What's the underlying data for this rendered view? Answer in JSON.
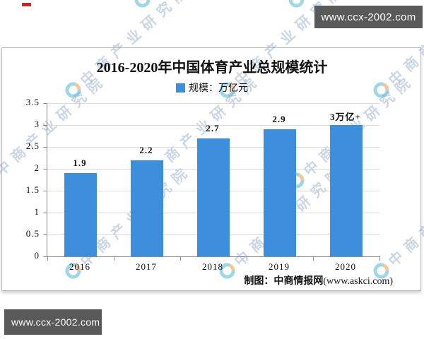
{
  "decorations": {
    "red_mark_color": "#cc2222"
  },
  "banners": {
    "top_right": "www.ccx-2002.com",
    "bottom_left": "www.ccx-2002.com",
    "background": "#595959",
    "text_color": "#ffffff"
  },
  "watermark": {
    "text": "中商产业研究院",
    "logo": "cc-swirl-logo",
    "text_color": "#7f9ac0",
    "logo_teal": "#2aa9cb",
    "logo_orange": "#f08519"
  },
  "chart": {
    "title": "2016-2020年中国体育产业总规模统计",
    "legend_label": "规模：万亿元",
    "attribution_prefix": "制图：中商情报网",
    "attribution_site": "(www.askci.com)",
    "chart_data": {
      "type": "bar",
      "title": "2016-2020年中国体育产业总规模统计",
      "categories": [
        "2016",
        "2017",
        "2018",
        "2019",
        "2020"
      ],
      "values": [
        1.9,
        2.2,
        2.7,
        2.9,
        3.0
      ],
      "value_labels": [
        "1.9",
        "2.2",
        "2.7",
        "2.9",
        "3万亿+"
      ],
      "series_name": "规模：万亿元",
      "unit": "万亿元",
      "xlabel": "",
      "ylabel": "",
      "ylim": [
        0,
        3.5
      ],
      "yticks": [
        0,
        0.5,
        1,
        1.5,
        2,
        2.5,
        3,
        3.5
      ],
      "ytick_labels": [
        "0",
        "0.5",
        "1",
        "1.5",
        "2",
        "2.5",
        "3",
        "3.5"
      ],
      "bar_color": "#3E8EDE",
      "grid": true,
      "legend_position": "top-center"
    }
  }
}
